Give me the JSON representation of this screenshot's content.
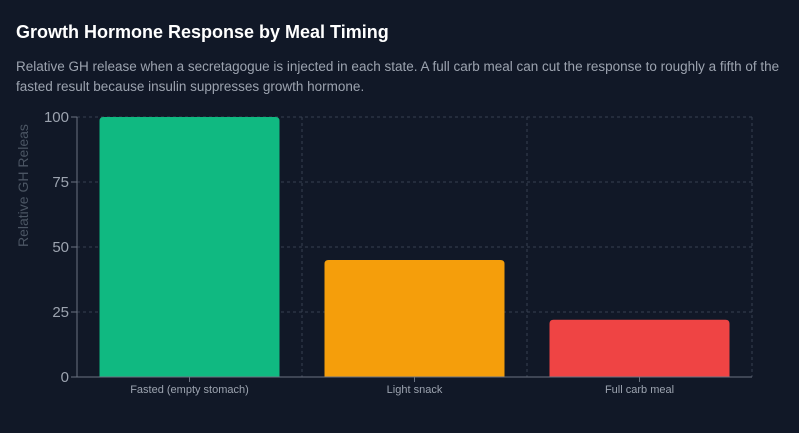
{
  "header": {
    "title": "Growth Hormone Response by Meal Timing",
    "subtitle": "Relative GH release when a secretagogue is injected in each state. A full carb meal can cut the response to roughly a fifth of the fasted result because insulin suppresses growth hormone."
  },
  "chart_data": {
    "type": "bar",
    "title": "Growth Hormone Response by Meal Timing",
    "xlabel": "",
    "ylabel": "Relative GH Releas",
    "categories": [
      "Fasted (empty stomach)",
      "Light snack",
      "Full carb meal"
    ],
    "values": [
      100,
      45,
      22
    ],
    "colors": [
      "#10b981",
      "#f59e0b",
      "#ef4444"
    ],
    "ylim": [
      0,
      100
    ],
    "yticks": [
      "0",
      "25",
      "50",
      "75",
      "100"
    ],
    "grid": true,
    "legend": "none"
  },
  "colors": {
    "background": "#111827",
    "grid": "#374151",
    "axis": "#6b7280",
    "text_muted": "#9ca3af"
  }
}
